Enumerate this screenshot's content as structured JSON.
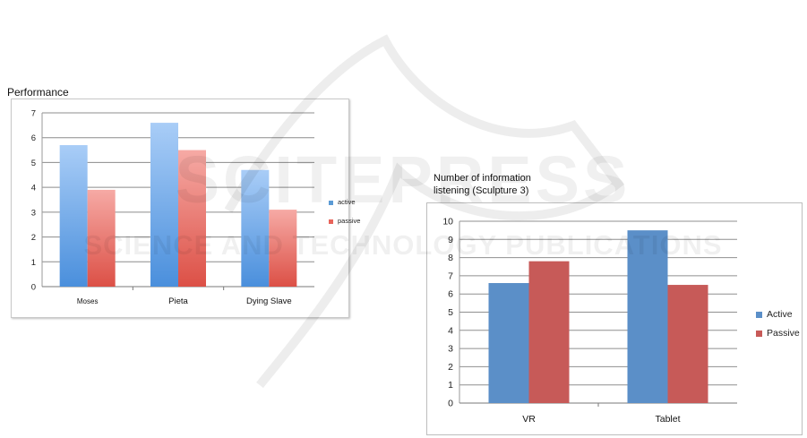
{
  "watermark": {
    "line1": "SCITEPRESS",
    "line2": "SCIENCE AND TECHNOLOGY PUBLICATIONS"
  },
  "chart_data": [
    {
      "type": "bar",
      "title": "Performance",
      "categories": [
        "Moses",
        "Pieta",
        "Dying Slave"
      ],
      "series": [
        {
          "name": "active",
          "values": [
            5.7,
            6.6,
            4.7
          ],
          "color": "#5b9bd5"
        },
        {
          "name": "passive",
          "values": [
            3.9,
            5.5,
            3.1
          ],
          "color": "#e8645a"
        }
      ],
      "ylim": [
        0,
        7
      ],
      "yticks": [
        0,
        1,
        2,
        3,
        4,
        5,
        6,
        7
      ],
      "grid": true,
      "legend": "right"
    },
    {
      "type": "bar",
      "title": "Number of information listening (Sculpture 3)",
      "title_lines": [
        "Number of information",
        "listening (Sculpture 3)"
      ],
      "categories": [
        "VR",
        "Tablet"
      ],
      "series": [
        {
          "name": "Active",
          "values": [
            6.6,
            9.5
          ],
          "color": "#5b8fc8"
        },
        {
          "name": "Passive",
          "values": [
            7.8,
            6.5
          ],
          "color": "#c75a58"
        }
      ],
      "ylim": [
        0,
        10
      ],
      "yticks": [
        0,
        1,
        2,
        3,
        4,
        5,
        6,
        7,
        8,
        9,
        10
      ],
      "grid": true,
      "legend": "right"
    }
  ]
}
